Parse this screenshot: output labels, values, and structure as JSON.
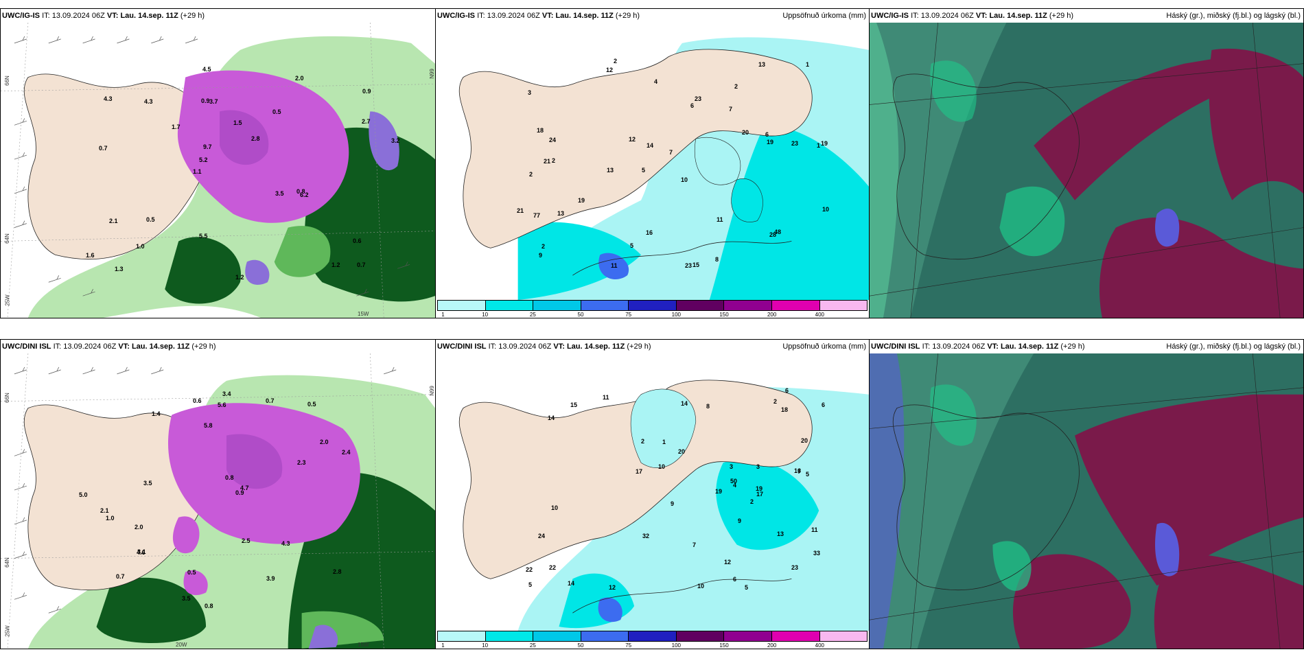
{
  "rows": [
    {
      "wind_panel": {
        "model": "UWC/IG-IS",
        "it_label": "IT:",
        "it_value": "13.09.2024 06Z",
        "vt_label": "VT:",
        "vt_value": "Lau. 14.sep. 11Z",
        "lead": "(+29 h)",
        "axis_labels": [
          "66N",
          "64N",
          "25W",
          "15W",
          "66N"
        ],
        "values": [
          "0.7",
          "0.7",
          "0.9",
          "1.1",
          "0.5",
          "1.3",
          "0.9",
          "1.5",
          "2.1",
          "1.7",
          "1.6",
          "1.0",
          "3.7",
          "2.8",
          "6.2",
          "4.3",
          "4.5",
          "3.2",
          "3.5",
          "2.7",
          "5.2",
          "5.5",
          "9.7",
          "4.3",
          "2.0",
          "0.5",
          "1.2",
          "0.6",
          "0.8",
          "1.2"
        ]
      },
      "precip_panel": {
        "model": "UWC/IG-IS",
        "it_label": "IT:",
        "it_value": "13.09.2024 06Z",
        "vt_label": "VT:",
        "vt_value": "Lau. 14.sep. 11Z",
        "lead": "(+29 h)",
        "title": "Uppsöfnuð úrkoma (mm)",
        "values": [
          "2",
          "2",
          "1",
          "5",
          "10",
          "2",
          "3",
          "7",
          "2",
          "6",
          "7",
          "9",
          "12",
          "13",
          "23",
          "15",
          "16",
          "13",
          "20",
          "19",
          "24",
          "21",
          "19",
          "23",
          "21",
          "18",
          "14",
          "19",
          "48",
          "77",
          "28",
          "23",
          "13",
          "12",
          "11",
          "10",
          "6",
          "5",
          "1",
          "4",
          "2",
          "11",
          "8"
        ]
      },
      "cloud_panel": {
        "model": "UWC/IG-IS",
        "it_label": "IT:",
        "it_value": "13.09.2024 06Z",
        "vt_label": "VT:",
        "vt_value": "Lau. 14.sep. 11Z",
        "lead": "(+29 h)",
        "title": "Háský (gr.), miðský (fj.bl.) og lágský (bl.)"
      }
    },
    {
      "wind_panel": {
        "model": "UWC/DINI ISL",
        "it_label": "IT:",
        "it_value": "13.09.2024 06Z",
        "vt_label": "VT:",
        "vt_value": "Lau. 14.sep. 11Z",
        "lead": "(+29 h)",
        "axis_labels": [
          "66N",
          "64N",
          "25W",
          "20W",
          "15W",
          "66N"
        ],
        "values": [
          "0.7",
          "0.5",
          "1.4",
          "2.0",
          "2.5",
          "3.5",
          "2.0",
          "3.1",
          "2.4",
          "2.3",
          "2.1",
          "3.4",
          "4.3",
          "0.9",
          "0.8",
          "0.6",
          "2.8",
          "5.0",
          "4.6",
          "3.5",
          "3.9",
          "5.6",
          "5.8",
          "4.7",
          "0.8",
          "0.5",
          "1.0",
          "0.7"
        ]
      },
      "precip_panel": {
        "model": "UWC/DINI ISL",
        "it_label": "IT:",
        "it_value": "13.09.2024 06Z",
        "vt_label": "VT:",
        "vt_value": "Lau. 14.sep. 11Z",
        "lead": "(+29 h)",
        "title": "Uppsöfnuð úrkoma (mm)",
        "values": [
          "1",
          "3",
          "2",
          "2",
          "2",
          "5",
          "3",
          "6",
          "7",
          "8",
          "7",
          "12",
          "6",
          "5",
          "10",
          "19",
          "17",
          "24",
          "12",
          "11",
          "10",
          "16",
          "11",
          "22",
          "17",
          "9",
          "14",
          "19",
          "20",
          "18",
          "13",
          "23",
          "32",
          "50",
          "33",
          "15",
          "14",
          "10",
          "9",
          "6",
          "5",
          "4",
          "20",
          "22",
          "14"
        ]
      },
      "cloud_panel": {
        "model": "UWC/DINI ISL",
        "it_label": "IT:",
        "it_value": "13.09.2024 06Z",
        "vt_label": "VT:",
        "vt_value": "Lau. 14.sep. 11Z",
        "lead": "(+29 h)",
        "title": "Háský (gr.), miðský (fj.bl.) og lágský (bl.)"
      }
    }
  ],
  "colorbar": {
    "ticks": [
      "1",
      "10",
      "25",
      "50",
      "75",
      "100",
      "150",
      "200",
      "400"
    ],
    "colors": [
      "#b8f8f8",
      "#00e8e8",
      "#00c8e8",
      "#3c6cf0",
      "#2020c0",
      "#600060",
      "#900090",
      "#e000b0",
      "#f8b8f0"
    ]
  },
  "colors": {
    "land": "#f3e2d3",
    "wind_green_light": "#b8e6b0",
    "wind_green_mid": "#5fb85a",
    "wind_green_dark": "#0e5a1e",
    "precip_magenta": "#c85ad8",
    "precip_violet": "#8a6fd8",
    "cloud_teal": "#2d6f62",
    "cloud_green": "#1ec88a",
    "cloud_maroon": "#7a1a4a",
    "cloud_blue": "#5a5ad8",
    "precip_cyan_light": "#aaf4f4",
    "precip_cyan": "#00e6e6"
  }
}
